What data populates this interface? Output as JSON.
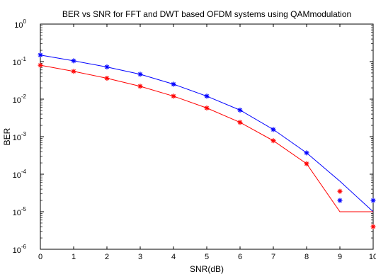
{
  "chart_data": {
    "type": "line",
    "title": "BER vs SNR for FFT and DWT based OFDM systems using QAMmodulation",
    "xlabel": "SNR(dB)",
    "ylabel": "BER",
    "xlim": [
      0,
      10
    ],
    "ylim": [
      1e-06,
      1
    ],
    "yscale": "log",
    "grid": false,
    "x_ticks": [
      "0",
      "1",
      "2",
      "3",
      "4",
      "5",
      "6",
      "7",
      "8",
      "9",
      "10"
    ],
    "y_ticks": [
      {
        "base": "10",
        "exp": "0"
      },
      {
        "base": "10",
        "exp": "-1"
      },
      {
        "base": "10",
        "exp": "-2"
      },
      {
        "base": "10",
        "exp": "-3"
      },
      {
        "base": "10",
        "exp": "-4"
      },
      {
        "base": "10",
        "exp": "-5"
      },
      {
        "base": "10",
        "exp": "-6"
      }
    ],
    "series": [
      {
        "color": "#0000ff",
        "marker": "*",
        "markers": {
          "x": [
            0,
            1,
            2,
            3,
            4,
            5,
            6,
            7,
            8,
            9,
            10
          ],
          "y": [
            0.15,
            0.105,
            0.072,
            0.046,
            0.025,
            0.012,
            0.0051,
            0.00155,
            0.00037,
            2e-05,
            2e-05
          ]
        },
        "line": {
          "x": [
            0,
            1,
            2,
            3,
            4,
            5,
            6,
            7,
            8,
            9,
            10
          ],
          "y": [
            0.15,
            0.105,
            0.072,
            0.046,
            0.025,
            0.012,
            0.0051,
            0.00155,
            0.00037,
            6.5e-05,
            1e-05
          ]
        }
      },
      {
        "color": "#ff0000",
        "marker": "*",
        "markers": {
          "x": [
            0,
            1,
            2,
            3,
            4,
            5,
            6,
            7,
            8,
            9,
            10
          ],
          "y": [
            0.08,
            0.055,
            0.036,
            0.022,
            0.012,
            0.0058,
            0.0024,
            0.00078,
            0.00019,
            3.5e-05,
            4e-06
          ]
        },
        "line": {
          "x": [
            0,
            1,
            2,
            3,
            4,
            5,
            6,
            7,
            8,
            9,
            10
          ],
          "y": [
            0.08,
            0.055,
            0.036,
            0.022,
            0.012,
            0.0058,
            0.0024,
            0.00078,
            0.00019,
            1e-05,
            1e-05
          ]
        }
      }
    ]
  }
}
